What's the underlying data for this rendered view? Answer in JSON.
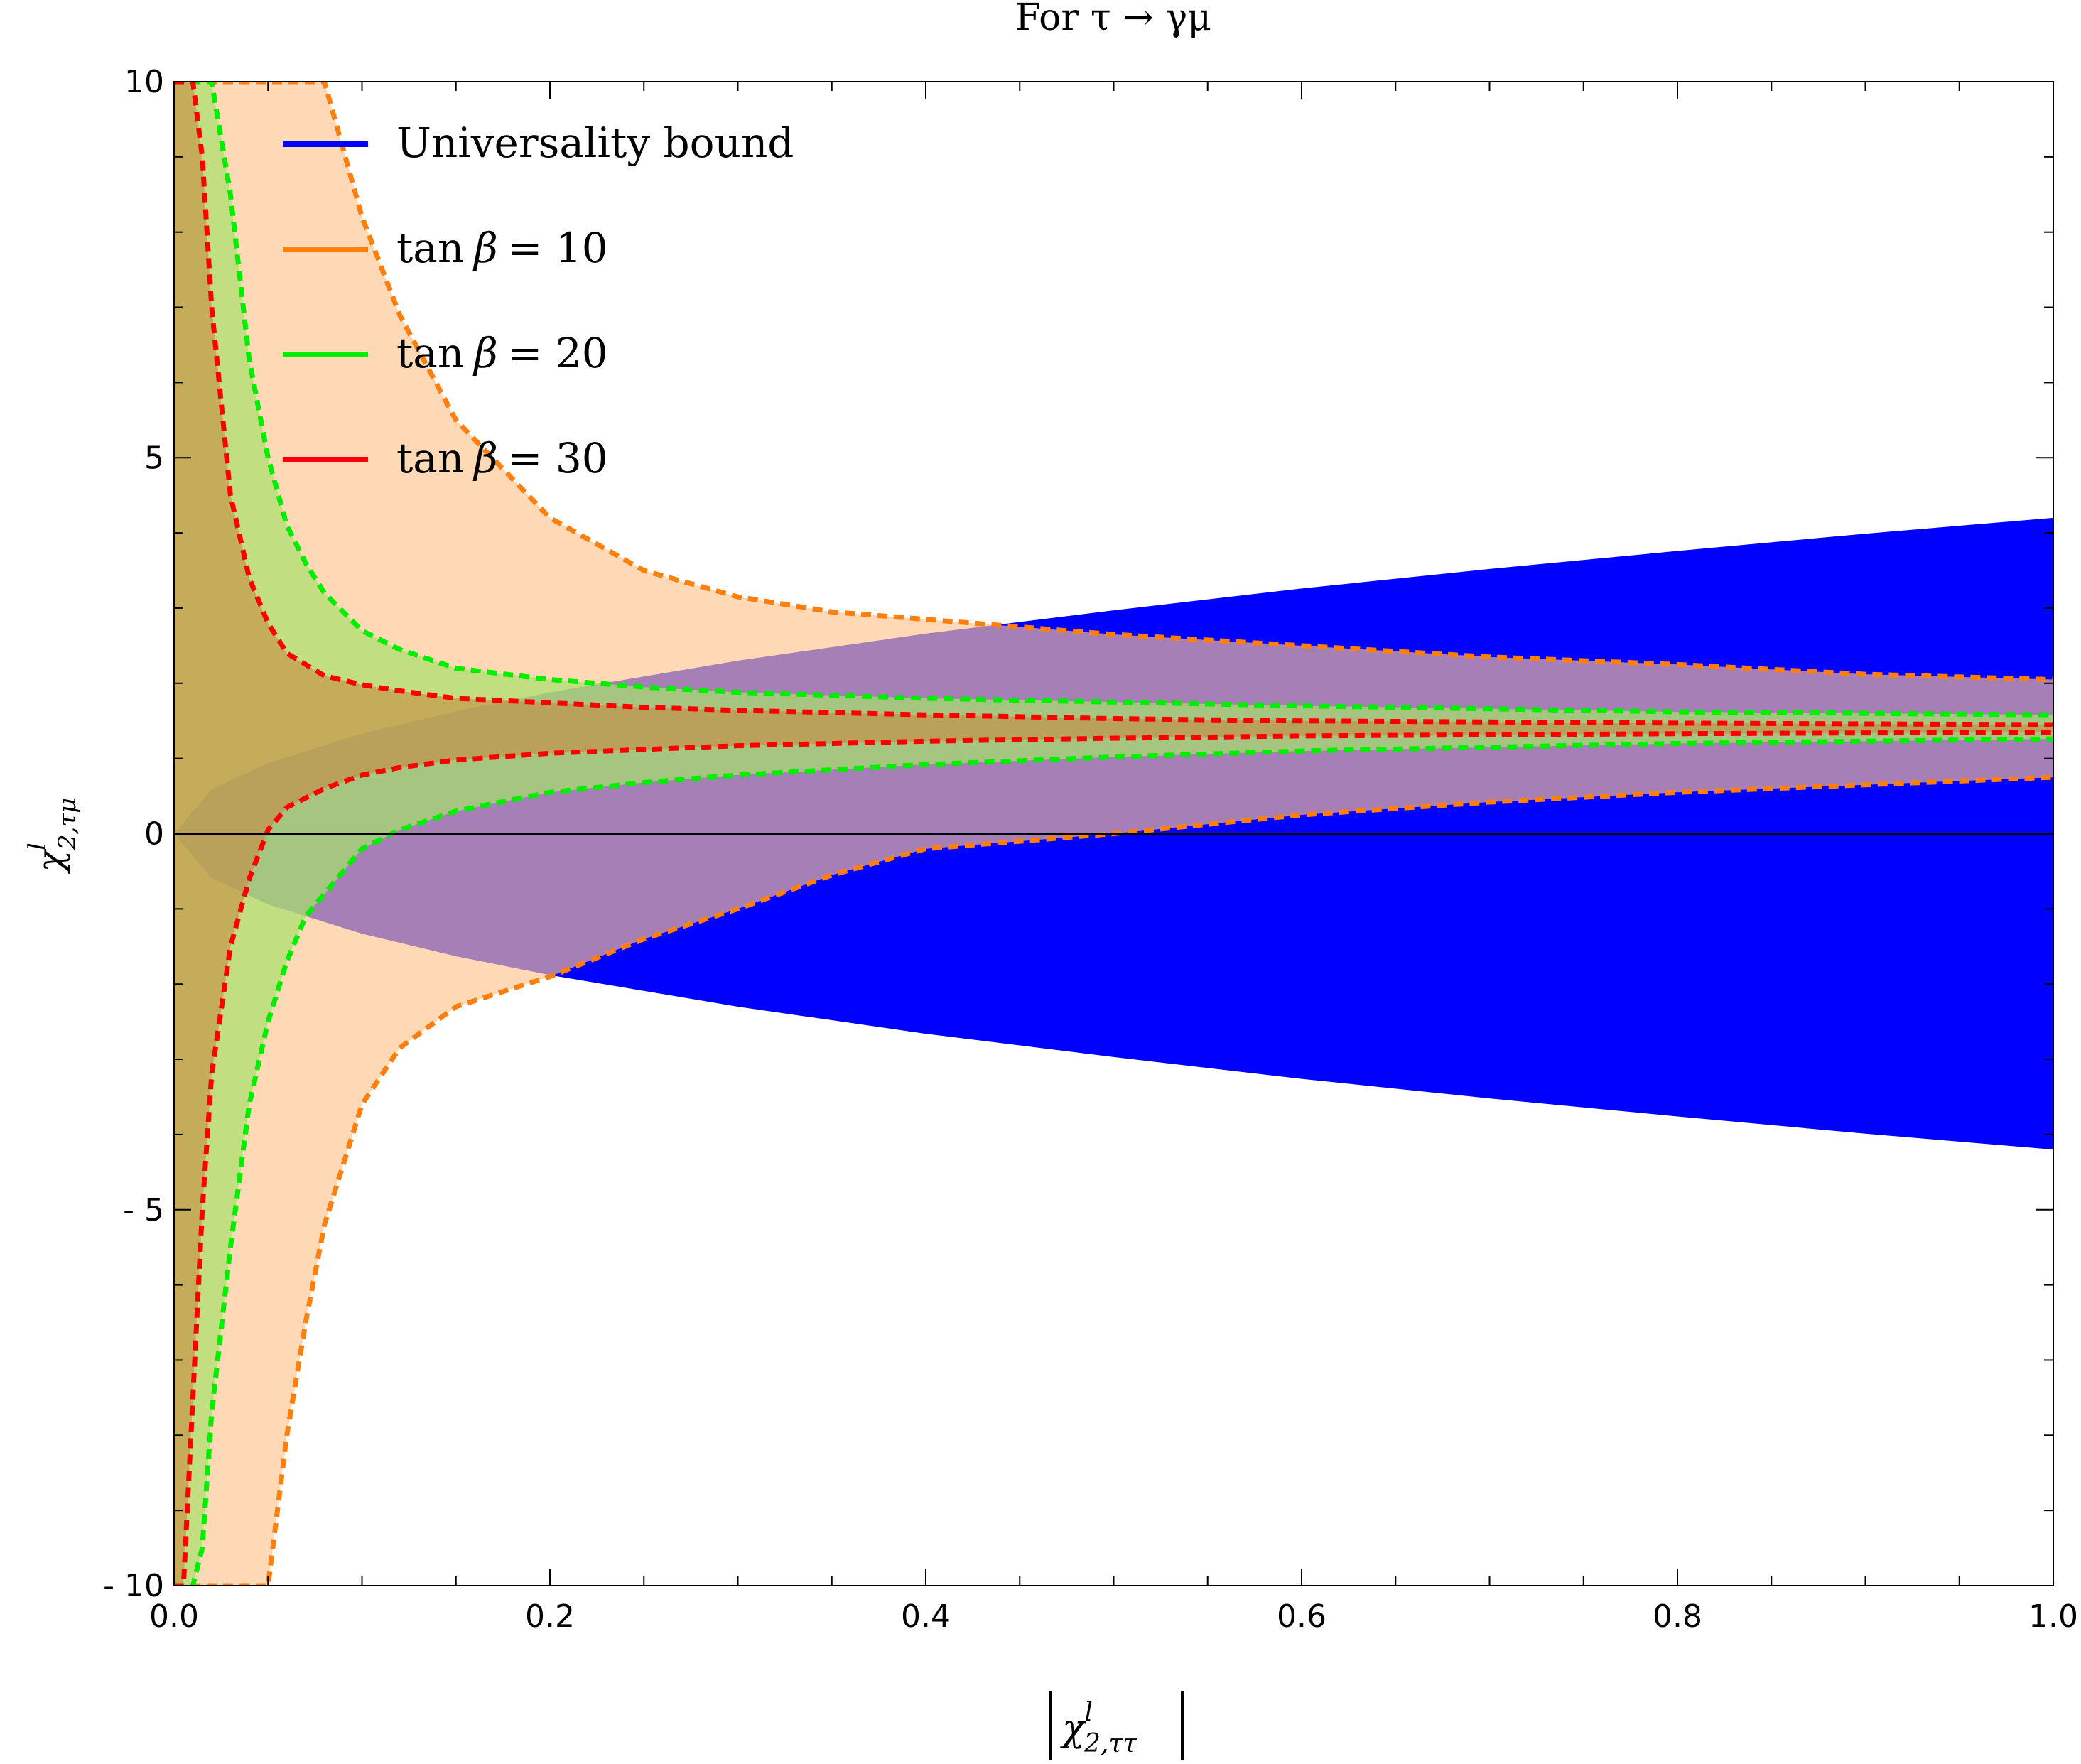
{
  "chart_data": {
    "type": "area",
    "title": "For τ → γμ",
    "xlabel": "|χ^l_{2,ττ}|",
    "ylabel": "χ^l_{2,τμ}",
    "xlim": [
      0.0,
      1.0
    ],
    "ylim": [
      -10,
      10
    ],
    "x_ticks": [
      0.0,
      0.2,
      0.4,
      0.6,
      0.8,
      1.0
    ],
    "x_tick_labels": [
      "0.0",
      "0.2",
      "0.4",
      "0.6",
      "0.8",
      "1.0"
    ],
    "y_ticks": [
      -10,
      -5,
      0,
      5,
      10
    ],
    "y_tick_labels": [
      "- 10",
      "- 5",
      "0",
      "5",
      "10"
    ],
    "grid": false,
    "legend_position": "top-left",
    "zero_line": true,
    "legend": [
      {
        "label_main": "Universality bound",
        "label_var": "",
        "label_eq": "",
        "color": "#0000ff"
      },
      {
        "label_main": "tan",
        "label_var": "β",
        "label_eq": "= 10",
        "color": "#ff7f0e"
      },
      {
        "label_main": "tan",
        "label_var": "β",
        "label_eq": "= 20",
        "color": "#00ee00"
      },
      {
        "label_main": "tan",
        "label_var": "β",
        "label_eq": "= 30",
        "color": "#ff0000"
      }
    ],
    "series": [
      {
        "name": "Universality bound",
        "color": "#0000ff",
        "fill": "#0000ff",
        "fill_opacity": 1.0,
        "dashed": false,
        "x": [
          0.0,
          0.02,
          0.05,
          0.1,
          0.15,
          0.2,
          0.3,
          0.4,
          0.5,
          0.6,
          0.7,
          0.8,
          0.9,
          1.0
        ],
        "upper": [
          0.0,
          0.59,
          0.94,
          1.33,
          1.63,
          1.88,
          2.3,
          2.66,
          2.97,
          3.26,
          3.52,
          3.76,
          3.99,
          4.2
        ],
        "lower": [
          0.0,
          -0.59,
          -0.94,
          -1.33,
          -1.63,
          -1.88,
          -2.3,
          -2.66,
          -2.97,
          -3.26,
          -3.52,
          -3.76,
          -3.99,
          -4.2
        ]
      },
      {
        "name": "tan β = 10",
        "color": "#ff7f0e",
        "fill": "#ffc38f",
        "fill_opacity": 0.65,
        "dashed": true,
        "x": [
          0.0,
          0.02,
          0.05,
          0.06,
          0.07,
          0.08,
          0.1,
          0.12,
          0.15,
          0.2,
          0.25,
          0.3,
          0.35,
          0.4,
          0.45,
          0.5,
          0.6,
          0.7,
          0.8,
          0.9,
          1.0
        ],
        "upper": [
          10,
          10,
          10,
          10,
          10,
          10,
          8.2,
          6.9,
          5.5,
          4.2,
          3.5,
          3.15,
          2.95,
          2.85,
          2.75,
          2.65,
          2.5,
          2.35,
          2.25,
          2.12,
          2.05
        ],
        "lower": [
          -10,
          -10,
          -10,
          -8.0,
          -6.5,
          -5.2,
          -3.6,
          -2.85,
          -2.3,
          -1.9,
          -1.4,
          -1.0,
          -0.55,
          -0.2,
          -0.1,
          0.0,
          0.25,
          0.42,
          0.55,
          0.65,
          0.75
        ]
      },
      {
        "name": "tan β = 20",
        "color": "#00ee00",
        "fill": "#a6e36a",
        "fill_opacity": 0.7,
        "dashed": true,
        "x": [
          0.0,
          0.01,
          0.015,
          0.02,
          0.03,
          0.04,
          0.05,
          0.06,
          0.07,
          0.08,
          0.1,
          0.12,
          0.15,
          0.2,
          0.25,
          0.3,
          0.4,
          0.5,
          0.6,
          0.8,
          1.0
        ],
        "upper": [
          10,
          10,
          10,
          10,
          8.5,
          6.3,
          5.0,
          4.1,
          3.6,
          3.2,
          2.7,
          2.45,
          2.2,
          2.05,
          1.95,
          1.88,
          1.8,
          1.75,
          1.7,
          1.62,
          1.58
        ],
        "lower": [
          -10,
          -10,
          -9.5,
          -7.7,
          -5.5,
          -3.6,
          -2.5,
          -1.7,
          -1.1,
          -0.8,
          -0.2,
          0.05,
          0.3,
          0.55,
          0.68,
          0.78,
          0.92,
          1.02,
          1.1,
          1.2,
          1.26
        ]
      },
      {
        "name": "tan β = 30",
        "color": "#ff0000",
        "fill": "#c8823c",
        "fill_opacity": 0.55,
        "dashed": true,
        "x": [
          0.0,
          0.005,
          0.01,
          0.015,
          0.02,
          0.03,
          0.04,
          0.05,
          0.06,
          0.08,
          0.1,
          0.12,
          0.15,
          0.2,
          0.25,
          0.3,
          0.4,
          0.5,
          0.6,
          0.8,
          1.0
        ],
        "upper": [
          10,
          10,
          10,
          9.0,
          7.0,
          4.5,
          3.4,
          2.8,
          2.4,
          2.1,
          1.98,
          1.9,
          1.8,
          1.74,
          1.68,
          1.64,
          1.58,
          1.53,
          1.5,
          1.47,
          1.45
        ],
        "lower": [
          -10,
          -10,
          -7.5,
          -5.0,
          -3.2,
          -1.5,
          -0.6,
          0.05,
          0.35,
          0.6,
          0.78,
          0.88,
          0.98,
          1.07,
          1.12,
          1.17,
          1.23,
          1.27,
          1.3,
          1.33,
          1.35
        ]
      }
    ]
  }
}
